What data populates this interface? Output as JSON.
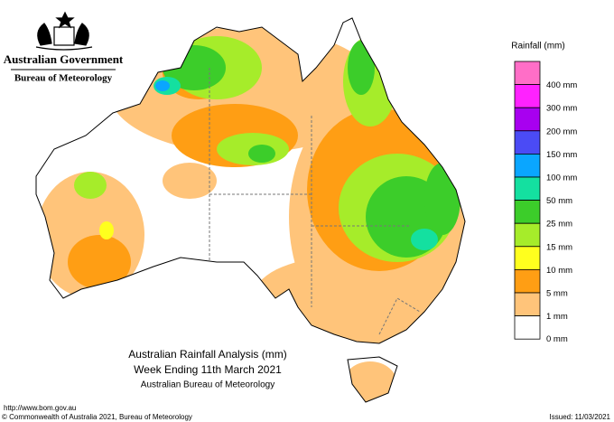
{
  "header": {
    "government": "Australian Government",
    "agency": "Bureau of Meteorology"
  },
  "legend": {
    "title": "Rainfall (mm)",
    "colors": [
      "#ff6ec7",
      "#ff22ff",
      "#a800f0",
      "#4b4bf5",
      "#0aa6ff",
      "#14e0a0",
      "#3ccd2a",
      "#a6ec2a",
      "#ffff1e",
      "#ff9e14",
      "#ffc47a",
      "#ffffff"
    ],
    "labels": [
      "400 mm",
      "300 mm",
      "200 mm",
      "150 mm",
      "100 mm",
      "50 mm",
      "25 mm",
      "15 mm",
      "10 mm",
      "5 mm",
      "1 mm",
      "0 mm"
    ]
  },
  "title": {
    "line1": "Australian Rainfall Analysis (mm)",
    "line2": "Week Ending 11th March 2021",
    "line3": "Australian Bureau of Meteorology"
  },
  "footer": {
    "url": "http://www.bom.gov.au",
    "copyright": "© Commonwealth of Australia 2021, Bureau of Meteorology",
    "issued": "Issued: 11/03/2021"
  }
}
